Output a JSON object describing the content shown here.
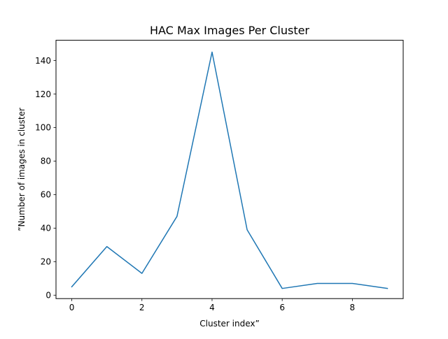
{
  "chart_data": {
    "type": "line",
    "title": "HAC Max Images Per Cluster",
    "xlabel": "Cluster index”",
    "ylabel": "”Number of images in cluster",
    "x": [
      0,
      1,
      2,
      3,
      4,
      5,
      6,
      7,
      8,
      9
    ],
    "series": [
      {
        "values": [
          5,
          29,
          13,
          47,
          145,
          39,
          4,
          7,
          7,
          4
        ],
        "color": "#1f77b4"
      }
    ],
    "xlim": [
      -0.45,
      9.45
    ],
    "ylim": [
      -2.05,
      152.05
    ],
    "xticks": [
      0,
      2,
      4,
      6,
      8
    ],
    "yticks": [
      0,
      20,
      40,
      60,
      80,
      100,
      120,
      140
    ],
    "grid": false,
    "legend": false
  }
}
